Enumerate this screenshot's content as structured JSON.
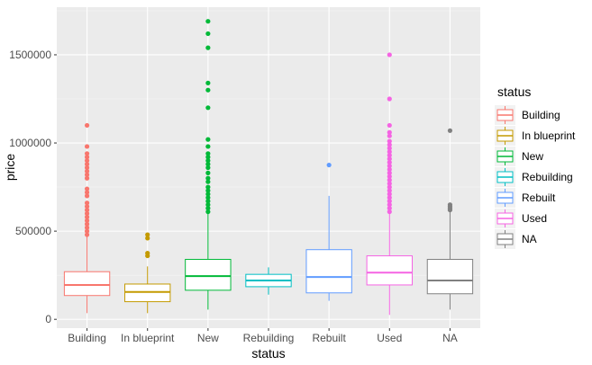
{
  "chart_data": {
    "type": "boxplot",
    "xlabel": "status",
    "ylabel": "price",
    "ylim": [
      -50000,
      1770000
    ],
    "y_ticks": [
      0,
      500000,
      1000000,
      1500000
    ],
    "y_tick_labels": [
      "0",
      "500000",
      "1000000",
      "1500000"
    ],
    "grid": true,
    "legend": {
      "title": "status",
      "placement": "right",
      "entries": [
        "Building",
        "In blueprint",
        "New",
        "Rebuilding",
        "Rebuilt",
        "Used",
        "NA"
      ]
    },
    "categories": [
      "Building",
      "In blueprint",
      "New",
      "Rebuilding",
      "Rebuilt",
      "Used",
      "NA"
    ],
    "colors": [
      "#F8766D",
      "#C49A00",
      "#00B938",
      "#00BFC4",
      "#619CFF",
      "#F564E3",
      "#808080"
    ],
    "boxes": [
      {
        "category": "Building",
        "lower_whisker": 35000,
        "q1": 135000,
        "median": 195000,
        "q3": 270000,
        "upper_whisker": 470000,
        "outliers": [
          480000,
          500000,
          520000,
          540000,
          560000,
          580000,
          600000,
          620000,
          640000,
          660000,
          700000,
          720000,
          740000,
          800000,
          820000,
          840000,
          860000,
          880000,
          900000,
          920000,
          940000,
          980000,
          1100000
        ]
      },
      {
        "category": "In blueprint",
        "lower_whisker": 35000,
        "q1": 100000,
        "median": 155000,
        "q3": 200000,
        "upper_whisker": 300000,
        "outliers": [
          360000,
          375000,
          460000,
          480000
        ]
      },
      {
        "category": "New",
        "lower_whisker": 55000,
        "q1": 165000,
        "median": 245000,
        "q3": 340000,
        "upper_whisker": 600000,
        "outliers": [
          610000,
          630000,
          650000,
          670000,
          690000,
          710000,
          730000,
          750000,
          780000,
          800000,
          830000,
          860000,
          880000,
          900000,
          920000,
          940000,
          980000,
          1020000,
          1200000,
          1300000,
          1340000,
          1540000,
          1620000,
          1690000
        ]
      },
      {
        "category": "Rebuilding",
        "lower_whisker": 140000,
        "q1": 185000,
        "median": 220000,
        "q3": 255000,
        "upper_whisker": 295000,
        "outliers": []
      },
      {
        "category": "Rebuilt",
        "lower_whisker": 105000,
        "q1": 150000,
        "median": 240000,
        "q3": 395000,
        "upper_whisker": 700000,
        "outliers": [
          875000
        ]
      },
      {
        "category": "Used",
        "lower_whisker": 25000,
        "q1": 195000,
        "median": 265000,
        "q3": 360000,
        "upper_whisker": 600000,
        "outliers": [
          610000,
          630000,
          650000,
          670000,
          690000,
          710000,
          730000,
          750000,
          770000,
          790000,
          810000,
          830000,
          850000,
          870000,
          890000,
          910000,
          930000,
          950000,
          970000,
          990000,
          1010000,
          1040000,
          1060000,
          1100000,
          1250000,
          1500000
        ]
      },
      {
        "category": "NA",
        "lower_whisker": 55000,
        "q1": 145000,
        "median": 220000,
        "q3": 340000,
        "upper_whisker": 610000,
        "outliers": [
          620000,
          630000,
          640000,
          650000,
          1070000
        ]
      }
    ]
  }
}
